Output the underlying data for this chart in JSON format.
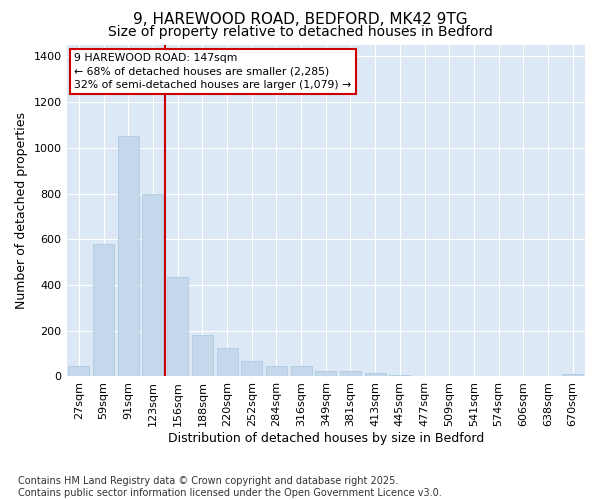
{
  "title_line1": "9, HAREWOOD ROAD, BEDFORD, MK42 9TG",
  "title_line2": "Size of property relative to detached houses in Bedford",
  "xlabel": "Distribution of detached houses by size in Bedford",
  "ylabel": "Number of detached properties",
  "bar_color": "#c5d8eb",
  "bar_edge_color": "#a8c8e0",
  "categories": [
    "27sqm",
    "59sqm",
    "91sqm",
    "123sqm",
    "156sqm",
    "188sqm",
    "220sqm",
    "252sqm",
    "284sqm",
    "316sqm",
    "349sqm",
    "381sqm",
    "413sqm",
    "445sqm",
    "477sqm",
    "509sqm",
    "541sqm",
    "574sqm",
    "606sqm",
    "638sqm",
    "670sqm"
  ],
  "values": [
    47,
    580,
    1050,
    800,
    435,
    180,
    125,
    68,
    47,
    47,
    25,
    22,
    15,
    5,
    0,
    0,
    0,
    0,
    0,
    0,
    10
  ],
  "vline_color": "#cc0000",
  "annotation_text": "9 HAREWOOD ROAD: 147sqm\n← 68% of detached houses are smaller (2,285)\n32% of semi-detached houses are larger (1,079) →",
  "annotation_box_color": "#ffffff",
  "annotation_box_edge": "#cc0000",
  "ylim": [
    0,
    1450
  ],
  "yticks": [
    0,
    200,
    400,
    600,
    800,
    1000,
    1200,
    1400
  ],
  "footnote": "Contains HM Land Registry data © Crown copyright and database right 2025.\nContains public sector information licensed under the Open Government Licence v3.0.",
  "fig_bg_color": "#ffffff",
  "plot_bg_color": "#dce8f5",
  "grid_color": "#ffffff",
  "title_fontsize": 11,
  "subtitle_fontsize": 10,
  "tick_fontsize": 8,
  "label_fontsize": 9,
  "footnote_fontsize": 7
}
